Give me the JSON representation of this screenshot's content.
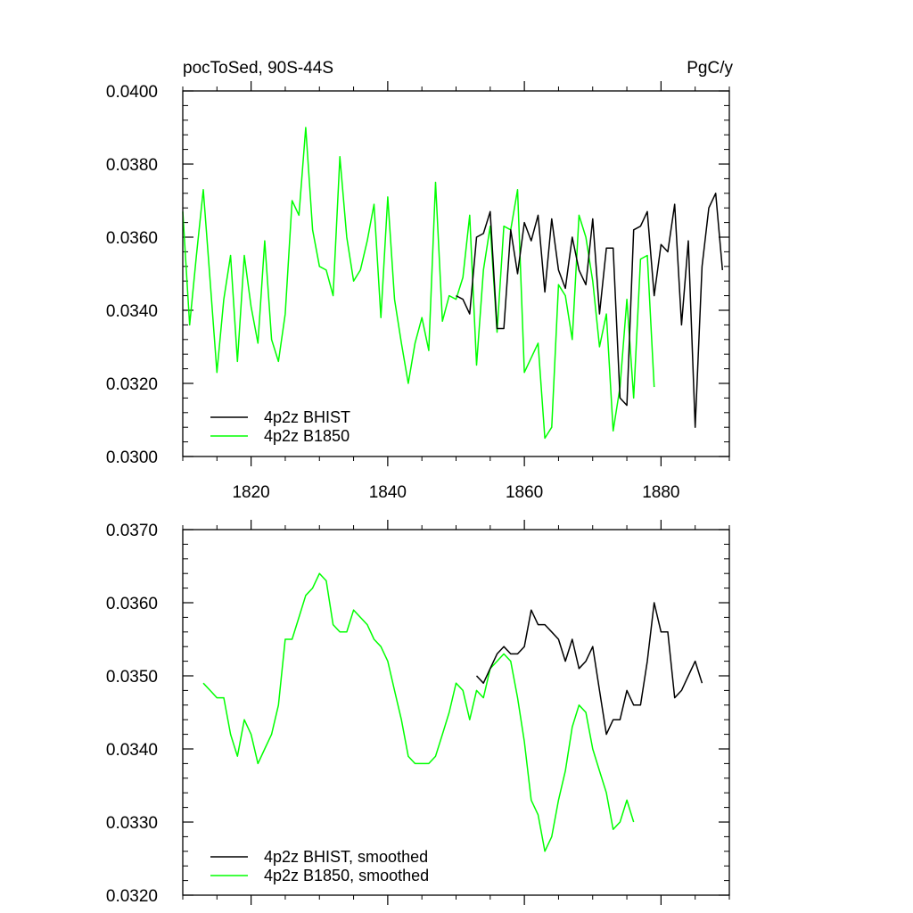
{
  "chart_data": [
    {
      "type": "line",
      "title": "pocToSed, 90S-44S",
      "units_label": "PgC/y",
      "xlim": [
        1810,
        1890
      ],
      "ylim": [
        0.03,
        0.04
      ],
      "x_ticks": [
        1820,
        1840,
        1860,
        1880
      ],
      "x_tick_labels": [
        "1820",
        "1840",
        "1860",
        "1880"
      ],
      "y_ticks": [
        0.03,
        0.032,
        0.034,
        0.036,
        0.038,
        0.04
      ],
      "y_tick_labels": [
        "0.0300",
        "0.0320",
        "0.0340",
        "0.0360",
        "0.0380",
        "0.0400"
      ],
      "legend_placement": "bottom-left",
      "series": [
        {
          "name": "4p2z BHIST",
          "color": "#000000",
          "x": [
            1850,
            1851,
            1852,
            1853,
            1854,
            1855,
            1856,
            1857,
            1858,
            1859,
            1860,
            1861,
            1862,
            1863,
            1864,
            1865,
            1866,
            1867,
            1868,
            1869,
            1870,
            1871,
            1872,
            1873,
            1874,
            1875,
            1876,
            1877,
            1878,
            1879,
            1880,
            1881,
            1882,
            1883,
            1884,
            1885,
            1886,
            1887,
            1888,
            1889
          ],
          "values": [
            0.0344,
            0.0343,
            0.0339,
            0.036,
            0.0361,
            0.0367,
            0.0335,
            0.0335,
            0.0362,
            0.035,
            0.0364,
            0.0359,
            0.0366,
            0.0345,
            0.0365,
            0.0351,
            0.0346,
            0.036,
            0.0351,
            0.0347,
            0.0365,
            0.0339,
            0.0357,
            0.0357,
            0.0316,
            0.0314,
            0.0362,
            0.0363,
            0.0367,
            0.0344,
            0.0358,
            0.0356,
            0.0369,
            0.0336,
            0.0359,
            0.0308,
            0.0352,
            0.0368,
            0.0372,
            0.0351
          ]
        },
        {
          "name": "4p2z B1850",
          "color": "#00ff00",
          "x": [
            1810,
            1811,
            1812,
            1813,
            1814,
            1815,
            1816,
            1817,
            1818,
            1819,
            1820,
            1821,
            1822,
            1823,
            1824,
            1825,
            1826,
            1827,
            1828,
            1829,
            1830,
            1831,
            1832,
            1833,
            1834,
            1835,
            1836,
            1837,
            1838,
            1839,
            1840,
            1841,
            1842,
            1843,
            1844,
            1845,
            1846,
            1847,
            1848,
            1849,
            1850,
            1851,
            1852,
            1853,
            1854,
            1855,
            1856,
            1857,
            1858,
            1859,
            1860,
            1861,
            1862,
            1863,
            1864,
            1865,
            1866,
            1867,
            1868,
            1869,
            1870,
            1871,
            1872,
            1873,
            1874,
            1875,
            1876,
            1877,
            1878,
            1879
          ],
          "values": [
            0.0367,
            0.0336,
            0.0355,
            0.0373,
            0.0348,
            0.0323,
            0.0343,
            0.0355,
            0.0326,
            0.0355,
            0.0341,
            0.0331,
            0.0359,
            0.0332,
            0.0326,
            0.0339,
            0.037,
            0.0366,
            0.039,
            0.0362,
            0.0352,
            0.0351,
            0.0344,
            0.0382,
            0.036,
            0.0348,
            0.0351,
            0.0359,
            0.0369,
            0.0338,
            0.0371,
            0.0343,
            0.0331,
            0.032,
            0.0331,
            0.0338,
            0.0329,
            0.0375,
            0.0337,
            0.0344,
            0.0343,
            0.0349,
            0.0366,
            0.0325,
            0.0351,
            0.0363,
            0.0334,
            0.0363,
            0.0362,
            0.0373,
            0.0323,
            0.0327,
            0.0331,
            0.0305,
            0.0308,
            0.0347,
            0.0344,
            0.0332,
            0.0366,
            0.036,
            0.0348,
            0.033,
            0.0339,
            0.0307,
            0.0319,
            0.0343,
            0.0316,
            0.0354,
            0.0355,
            0.0319
          ]
        }
      ]
    },
    {
      "type": "line",
      "xlim": [
        1810,
        1890
      ],
      "ylim": [
        0.032,
        0.037
      ],
      "x_ticks": [
        1820,
        1840,
        1860,
        1880
      ],
      "y_ticks": [
        0.032,
        0.033,
        0.034,
        0.035,
        0.036,
        0.037
      ],
      "y_tick_labels": [
        "0.0320",
        "0.0330",
        "0.0340",
        "0.0350",
        "0.0360",
        "0.0370"
      ],
      "legend_placement": "bottom-left",
      "series": [
        {
          "name": "4p2z BHIST, smoothed",
          "color": "#000000",
          "x": [
            1853,
            1854,
            1855,
            1856,
            1857,
            1858,
            1859,
            1860,
            1861,
            1862,
            1863,
            1864,
            1865,
            1866,
            1867,
            1868,
            1869,
            1870,
            1871,
            1872,
            1873,
            1874,
            1875,
            1876,
            1877,
            1878,
            1879,
            1880,
            1881,
            1882,
            1883,
            1884,
            1885,
            1886
          ],
          "values": [
            0.035,
            0.0349,
            0.0351,
            0.0353,
            0.0354,
            0.0353,
            0.0353,
            0.0354,
            0.0359,
            0.0357,
            0.0357,
            0.0356,
            0.0355,
            0.0352,
            0.0355,
            0.0351,
            0.0352,
            0.0354,
            0.0348,
            0.0342,
            0.0344,
            0.0344,
            0.0348,
            0.0346,
            0.0346,
            0.0352,
            0.036,
            0.0356,
            0.0356,
            0.0347,
            0.0348,
            0.035,
            0.0352,
            0.0349
          ]
        },
        {
          "name": "4p2z B1850, smoothed",
          "color": "#00ff00",
          "x": [
            1813,
            1814,
            1815,
            1816,
            1817,
            1818,
            1819,
            1820,
            1821,
            1822,
            1823,
            1824,
            1825,
            1826,
            1827,
            1828,
            1829,
            1830,
            1831,
            1832,
            1833,
            1834,
            1835,
            1836,
            1837,
            1838,
            1839,
            1840,
            1841,
            1842,
            1843,
            1844,
            1845,
            1846,
            1847,
            1848,
            1849,
            1850,
            1851,
            1852,
            1853,
            1854,
            1855,
            1856,
            1857,
            1858,
            1859,
            1860,
            1861,
            1862,
            1863,
            1864,
            1865,
            1866,
            1867,
            1868,
            1869,
            1870,
            1871,
            1872,
            1873,
            1874,
            1875,
            1876
          ],
          "values": [
            0.0349,
            0.0348,
            0.0347,
            0.0347,
            0.0342,
            0.0339,
            0.0344,
            0.0342,
            0.0338,
            0.034,
            0.0342,
            0.0346,
            0.0355,
            0.0355,
            0.0358,
            0.0361,
            0.0362,
            0.0364,
            0.0363,
            0.0357,
            0.0356,
            0.0356,
            0.0359,
            0.0358,
            0.0357,
            0.0355,
            0.0354,
            0.0352,
            0.0348,
            0.0344,
            0.0339,
            0.0338,
            0.0338,
            0.0338,
            0.0339,
            0.0342,
            0.0345,
            0.0349,
            0.0348,
            0.0344,
            0.0348,
            0.0347,
            0.0351,
            0.0352,
            0.0353,
            0.0352,
            0.0347,
            0.0341,
            0.0333,
            0.0331,
            0.0326,
            0.0328,
            0.0333,
            0.0337,
            0.0343,
            0.0346,
            0.0345,
            0.034,
            0.0337,
            0.0334,
            0.0329,
            0.033,
            0.0333,
            0.033
          ]
        }
      ]
    }
  ]
}
